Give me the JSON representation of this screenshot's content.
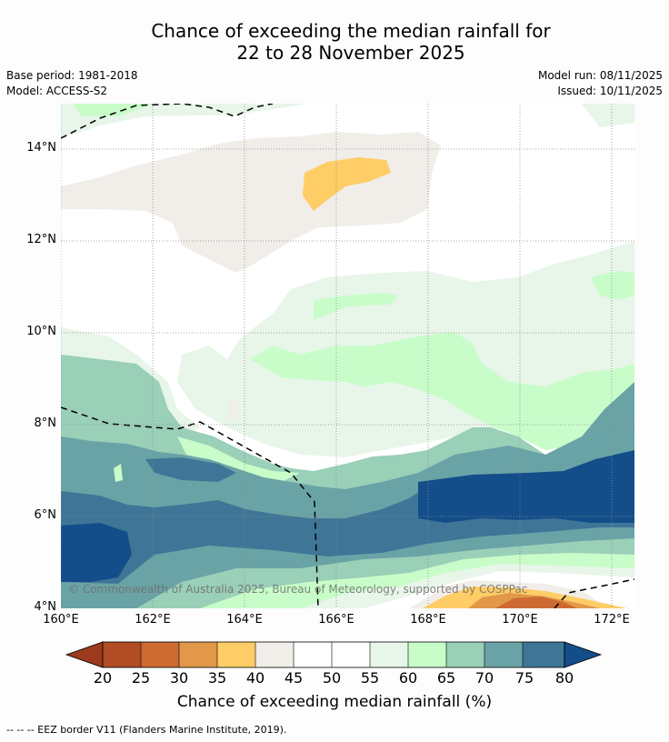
{
  "title": {
    "line1": "Chance of exceeding the median rainfall for",
    "line2": "22 to 28 November 2025"
  },
  "meta": {
    "base_period": "Base period: 1981-2018",
    "model": "Model: ACCESS-S2",
    "model_run": "Model run: 08/11/2025",
    "issued": "Issued: 10/11/2025"
  },
  "map": {
    "lat_labels": [
      "14°N",
      "12°N",
      "10°N",
      "8°N",
      "6°N",
      "4°N"
    ],
    "lon_labels": [
      "160°E",
      "162°E",
      "164°E",
      "166°E",
      "168°E",
      "170°E",
      "172°E"
    ],
    "copyright": "© Commonwealth of Australia 2025, Bureau of Meteorology, supported by COSPPac"
  },
  "colorbar": {
    "ticks": [
      "20",
      "25",
      "30",
      "35",
      "40",
      "45",
      "50",
      "55",
      "60",
      "65",
      "70",
      "75",
      "80"
    ],
    "label": "Chance of exceeding median rainfall (%)",
    "colors": {
      "lt20": "#9c3a1e",
      "20-25": "#b14d24",
      "25-30": "#cd6a32",
      "30-35": "#e29849",
      "35-40": "#fecd66",
      "40-45": "#f1ede8",
      "45-50": "#ffffff",
      "50-55": "#ffffff",
      "55-60": "#e8f5e9",
      "60-65": "#c8fdc9",
      "65-70": "#9acfb8",
      "70-75": "#6aa3a6",
      "75-80": "#3f7697",
      "gt80": "#134e8a"
    }
  },
  "footnote": "--  --  -- EEZ border V11 (Flanders Marine Institute, 2019)."
}
